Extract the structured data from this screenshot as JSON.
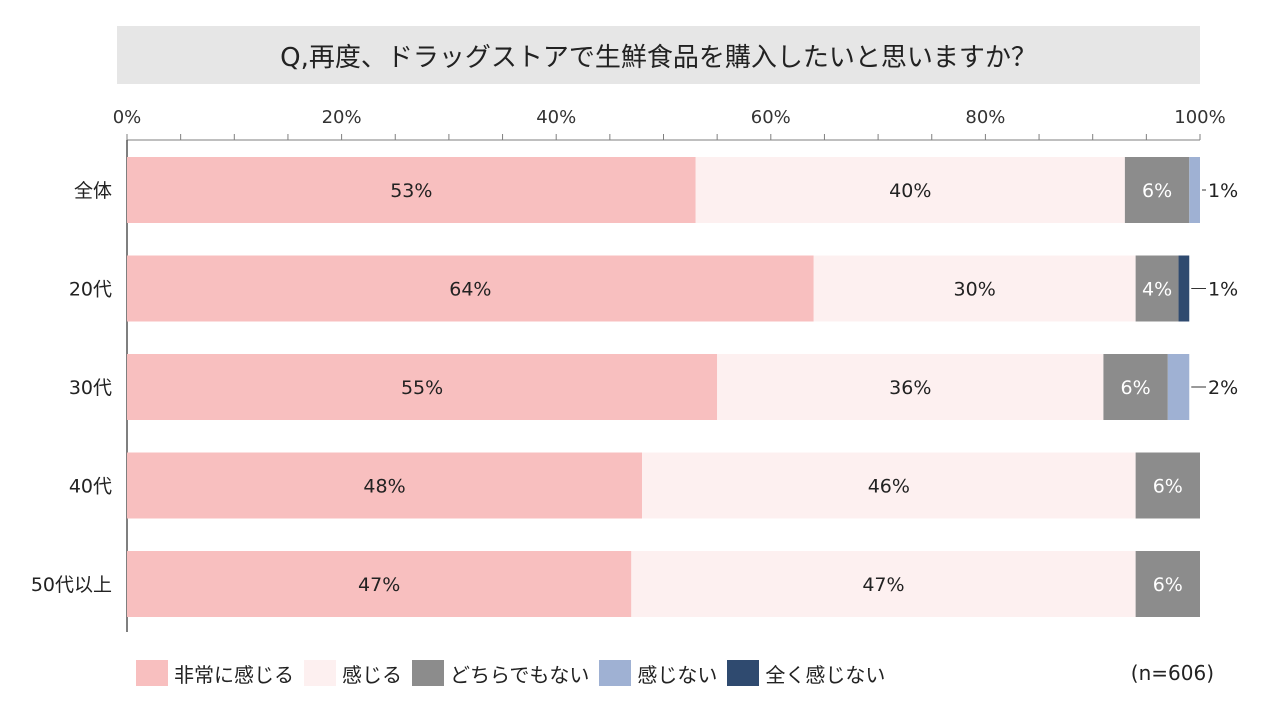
{
  "chart_data": {
    "type": "bar",
    "orientation": "horizontal",
    "stacked": true,
    "title": "Q,再度、ドラッグストアで生鮮食品を購入したいと思いますか？",
    "sample_size": "(n=606)",
    "categories": [
      "全体",
      "20代",
      "30代",
      "40代",
      "50代以上"
    ],
    "series": [
      {
        "name": "非常に感じる",
        "color": "#f8bfbf",
        "values": [
          53,
          64,
          55,
          48,
          47
        ],
        "labels": [
          "53%",
          "64%",
          "55%",
          "48%",
          "47%"
        ]
      },
      {
        "name": "感じる",
        "color": "#fdf0f0",
        "values": [
          40,
          30,
          36,
          46,
          47
        ],
        "labels": [
          "40%",
          "30%",
          "36%",
          "46%",
          "47%"
        ]
      },
      {
        "name": "どちらでもない",
        "color": "#8c8c8c",
        "values": [
          6,
          4,
          6,
          6,
          6
        ],
        "labels": [
          "6%",
          "4%",
          "6%",
          "6%",
          "6%"
        ]
      },
      {
        "name": "感じない",
        "color": "#9fb1d3",
        "values": [
          1,
          0,
          2,
          0,
          0
        ],
        "labels": [
          "1%",
          "",
          "2%",
          "",
          ""
        ]
      },
      {
        "name": "全く感じない",
        "color": "#2f4a6f",
        "values": [
          0,
          1,
          0,
          0,
          0
        ],
        "labels": [
          "",
          "1%",
          "",
          "",
          ""
        ]
      }
    ],
    "xlim": [
      0,
      100
    ],
    "xticks": [
      "0%",
      "20%",
      "40%",
      "60%",
      "80%",
      "100%"
    ],
    "legend_position": "bottom",
    "grid": false
  }
}
